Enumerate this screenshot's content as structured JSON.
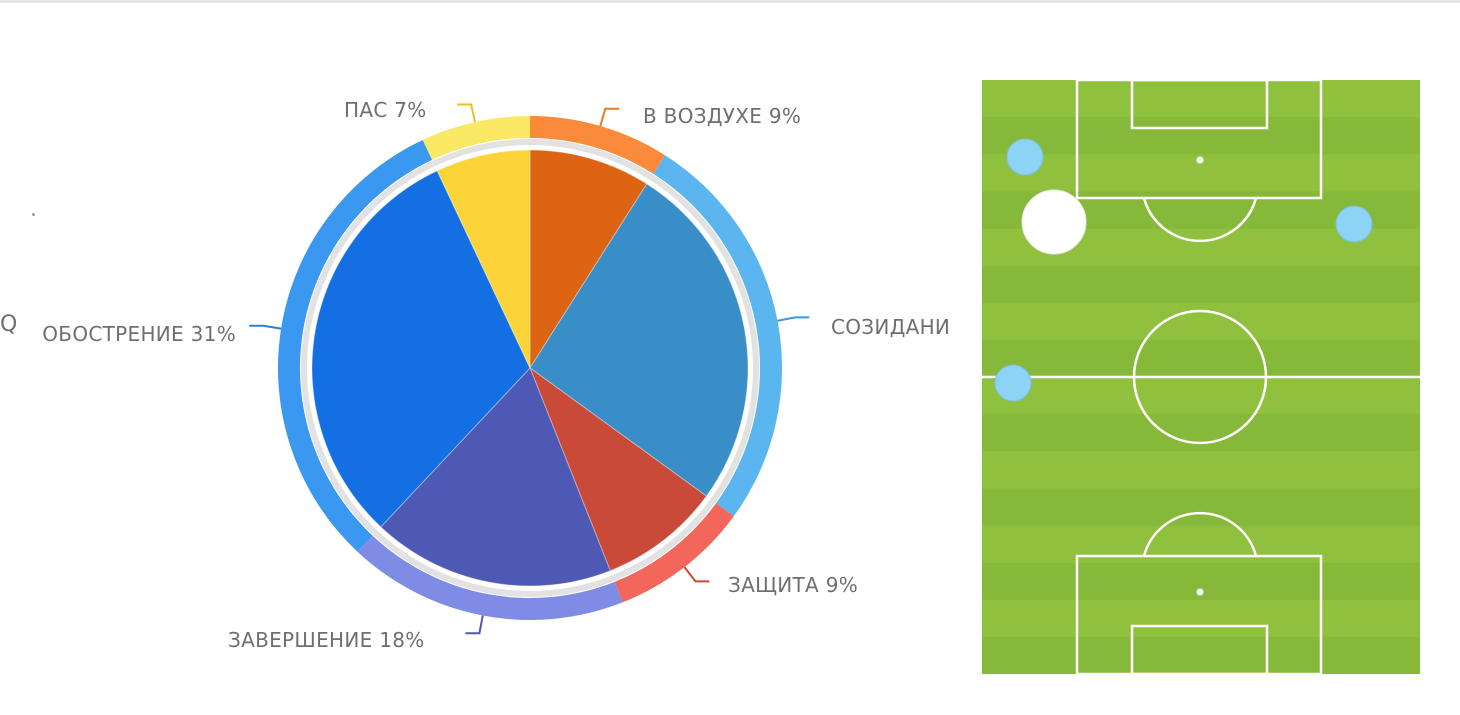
{
  "chart_data": {
    "type": "pie",
    "title": "",
    "slices": [
      {
        "label": "В ВОЗДУХЕ 9%",
        "value": 9,
        "color": "#dd6412",
        "ring_color": "#fb8b3a",
        "connector_color": "#e77a26"
      },
      {
        "label": "СОЗИДАНИЕ",
        "value": 26,
        "color": "#3a8ec8",
        "ring_color": "#5bb5ef",
        "connector_color": "#3a9bd8"
      },
      {
        "label": "ЗАЩИТА 9%",
        "value": 9,
        "color": "#c94a38",
        "ring_color": "#f2665c",
        "connector_color": "#c94a38"
      },
      {
        "label": "ЗАВЕРШЕНИЕ 18%",
        "value": 18,
        "color": "#4d59b5",
        "ring_color": "#7e8ce6",
        "connector_color": "#4d59b5"
      },
      {
        "label": "ОБОСТРЕНИЕ 31%",
        "value": 31,
        "color": "#1470e2",
        "ring_color": "#3a98f0",
        "connector_color": "#2a7fe0"
      },
      {
        "label": "ПАС 7%",
        "value": 7,
        "color": "#fcd43a",
        "ring_color": "#fbe865",
        "connector_color": "#f0c020"
      }
    ],
    "legend": "labels-around"
  },
  "visible_labels": {
    "v_vozdukhe": "В ВОЗДУХЕ 9%",
    "sozidanie": "СОЗИДАНИ",
    "zashchita": "ЗАЩИТА 9%",
    "zavershenie": "ЗАВЕРШЕНИЕ 18%",
    "obostrenie": "ОБОСТРЕНИЕ 31%",
    "pas": "ПАС 7%",
    "clipped_glyph": "Q"
  },
  "pitch": {
    "grass_light": "#8fc13f",
    "grass_dark": "#86b839",
    "line_color": "#ffffff",
    "markers": [
      {
        "name": "player-marker",
        "color": "#8dd3f5"
      },
      {
        "name": "player-marker",
        "color": "#8dd3f5"
      },
      {
        "name": "player-marker",
        "color": "#8dd3f5"
      },
      {
        "name": "ball-marker",
        "color": "#ffffff"
      }
    ]
  }
}
